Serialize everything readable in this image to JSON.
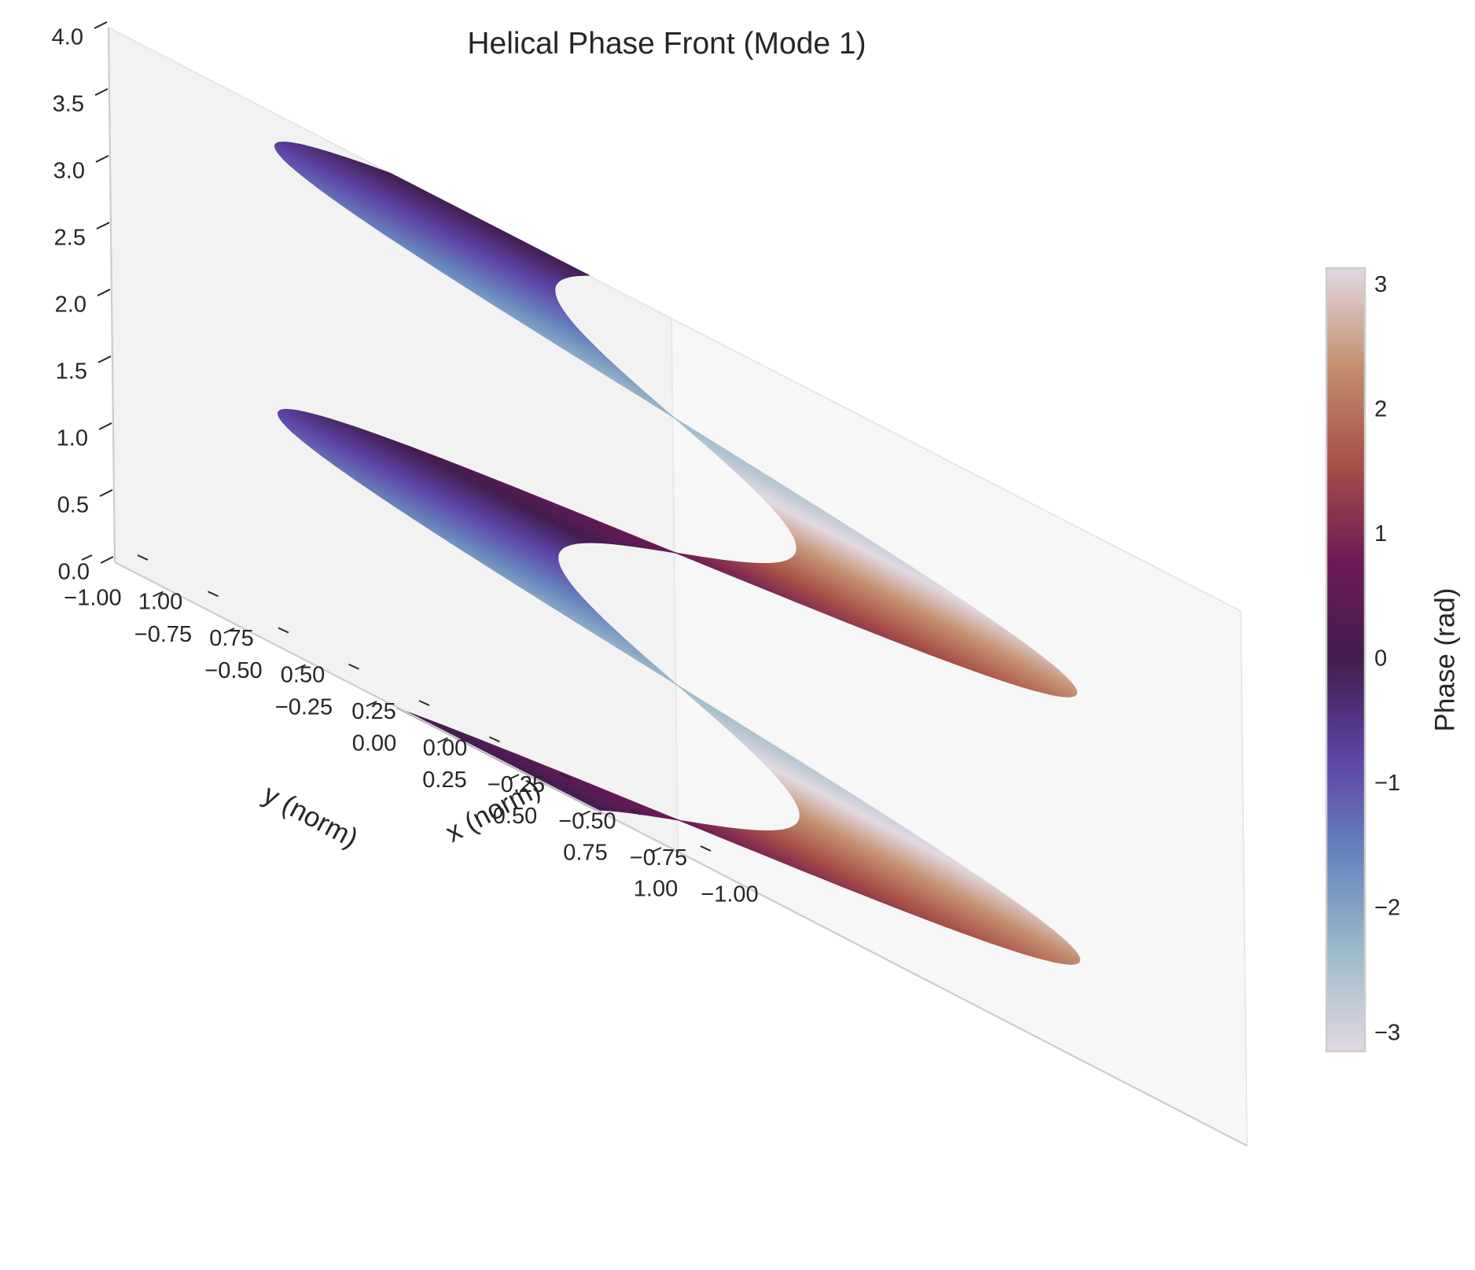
{
  "chart_data": {
    "type": "surface3d",
    "title": "Helical Phase Front (Mode 1)",
    "xlabel": "x (norm)",
    "ylabel": "y (norm)",
    "zlabel": "",
    "xlim": [
      -1.0,
      1.0
    ],
    "ylim": [
      -1.0,
      1.0
    ],
    "zlim": [
      0.0,
      4.0
    ],
    "x_ticks": [
      "−1.00",
      "−0.75",
      "−0.50",
      "−0.25",
      "0.00",
      "0.25",
      "0.50",
      "0.75",
      "1.00"
    ],
    "y_ticks": [
      "−1.00",
      "−0.75",
      "−0.50",
      "−0.25",
      "0.00",
      "0.25",
      "0.50",
      "0.75",
      "1.00"
    ],
    "z_ticks": [
      "0.0",
      "0.5",
      "1.0",
      "1.5",
      "2.0",
      "2.5",
      "3.0",
      "3.5",
      "4.0"
    ],
    "surface": {
      "description_of_shape": "helicoid annulus",
      "r_inner": 0.3,
      "r_outer": 1.0,
      "turns": 2,
      "z_range": [
        0.0,
        4.0
      ],
      "color_by": "phase"
    },
    "colorbar": {
      "label": "Phase (rad)",
      "range": [
        -3.14159,
        3.14159
      ],
      "ticks": [
        "−3",
        "−2",
        "−1",
        "0",
        "1",
        "2",
        "3"
      ],
      "tick_values": [
        -3,
        -2,
        -1,
        0,
        1,
        2,
        3
      ],
      "colormap": "twilight",
      "colors": [
        "#e2d9e2",
        "#9ebbc9",
        "#6785be",
        "#5e43a5",
        "#421e4f",
        "#6d1a56",
        "#a75048",
        "#c48f6f",
        "#e2d9e2"
      ]
    },
    "view": {
      "elevation_deg": 25,
      "azimuth_deg": 45
    },
    "grid": false,
    "pane_color": "#f2f2f2"
  }
}
